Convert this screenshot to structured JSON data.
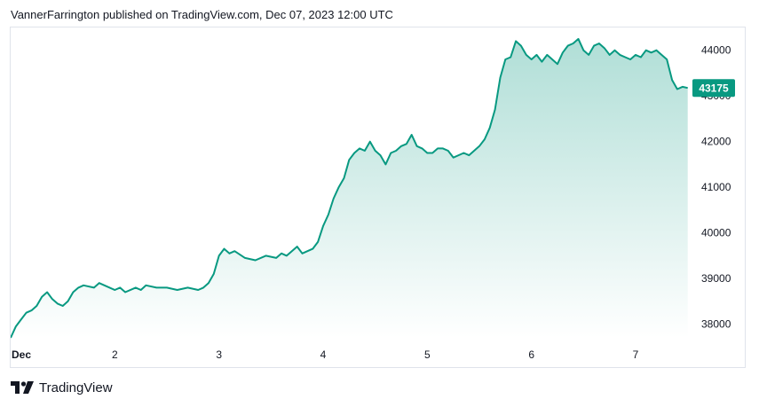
{
  "header": {
    "published_text": "VannerFarrington published on TradingView.com, Dec 07, 2023 12:00 UTC"
  },
  "footer": {
    "brand": "TradingView"
  },
  "colors": {
    "line": "#089981",
    "fill_top": "#089981",
    "price_tag": "#089981",
    "border": "#e0e3eb"
  },
  "chart_data": {
    "type": "area",
    "x_unit": "days",
    "x_ticks": [
      {
        "x": 0,
        "label": "Dec"
      },
      {
        "x": 1,
        "label": "2"
      },
      {
        "x": 2,
        "label": "3"
      },
      {
        "x": 3,
        "label": "4"
      },
      {
        "x": 4,
        "label": "5"
      },
      {
        "x": 5,
        "label": "6"
      },
      {
        "x": 6,
        "label": "7"
      }
    ],
    "y_ticks": [
      38000,
      39000,
      40000,
      41000,
      42000,
      43000,
      44000
    ],
    "ylim": [
      37700,
      44500
    ],
    "xlim": [
      0,
      6.52
    ],
    "last_price_label": "43175",
    "last_price": 43175,
    "points": [
      [
        0.0,
        37700
      ],
      [
        0.05,
        37950
      ],
      [
        0.1,
        38100
      ],
      [
        0.15,
        38250
      ],
      [
        0.2,
        38300
      ],
      [
        0.25,
        38400
      ],
      [
        0.3,
        38600
      ],
      [
        0.35,
        38700
      ],
      [
        0.4,
        38550
      ],
      [
        0.45,
        38450
      ],
      [
        0.5,
        38400
      ],
      [
        0.55,
        38500
      ],
      [
        0.6,
        38700
      ],
      [
        0.65,
        38800
      ],
      [
        0.7,
        38850
      ],
      [
        0.8,
        38800
      ],
      [
        0.85,
        38900
      ],
      [
        0.9,
        38850
      ],
      [
        0.95,
        38800
      ],
      [
        1.0,
        38750
      ],
      [
        1.05,
        38800
      ],
      [
        1.1,
        38700
      ],
      [
        1.2,
        38800
      ],
      [
        1.25,
        38750
      ],
      [
        1.3,
        38850
      ],
      [
        1.4,
        38800
      ],
      [
        1.5,
        38800
      ],
      [
        1.6,
        38750
      ],
      [
        1.7,
        38800
      ],
      [
        1.8,
        38750
      ],
      [
        1.85,
        38800
      ],
      [
        1.9,
        38900
      ],
      [
        1.95,
        39100
      ],
      [
        2.0,
        39500
      ],
      [
        2.05,
        39650
      ],
      [
        2.1,
        39550
      ],
      [
        2.15,
        39600
      ],
      [
        2.25,
        39450
      ],
      [
        2.35,
        39400
      ],
      [
        2.45,
        39500
      ],
      [
        2.55,
        39450
      ],
      [
        2.6,
        39550
      ],
      [
        2.65,
        39500
      ],
      [
        2.7,
        39600
      ],
      [
        2.75,
        39700
      ],
      [
        2.8,
        39550
      ],
      [
        2.85,
        39600
      ],
      [
        2.9,
        39650
      ],
      [
        2.95,
        39800
      ],
      [
        3.0,
        40150
      ],
      [
        3.05,
        40400
      ],
      [
        3.1,
        40750
      ],
      [
        3.15,
        41000
      ],
      [
        3.2,
        41200
      ],
      [
        3.25,
        41600
      ],
      [
        3.3,
        41750
      ],
      [
        3.35,
        41850
      ],
      [
        3.4,
        41800
      ],
      [
        3.45,
        42000
      ],
      [
        3.5,
        41800
      ],
      [
        3.55,
        41700
      ],
      [
        3.6,
        41500
      ],
      [
        3.65,
        41750
      ],
      [
        3.7,
        41800
      ],
      [
        3.75,
        41900
      ],
      [
        3.8,
        41950
      ],
      [
        3.85,
        42150
      ],
      [
        3.9,
        41900
      ],
      [
        3.95,
        41850
      ],
      [
        4.0,
        41750
      ],
      [
        4.05,
        41750
      ],
      [
        4.1,
        41850
      ],
      [
        4.15,
        41850
      ],
      [
        4.2,
        41800
      ],
      [
        4.25,
        41650
      ],
      [
        4.3,
        41700
      ],
      [
        4.35,
        41750
      ],
      [
        4.4,
        41700
      ],
      [
        4.45,
        41800
      ],
      [
        4.5,
        41900
      ],
      [
        4.55,
        42050
      ],
      [
        4.6,
        42300
      ],
      [
        4.65,
        42700
      ],
      [
        4.7,
        43400
      ],
      [
        4.75,
        43800
      ],
      [
        4.8,
        43850
      ],
      [
        4.85,
        44200
      ],
      [
        4.9,
        44100
      ],
      [
        4.95,
        43900
      ],
      [
        5.0,
        43800
      ],
      [
        5.05,
        43900
      ],
      [
        5.1,
        43750
      ],
      [
        5.15,
        43900
      ],
      [
        5.2,
        43800
      ],
      [
        5.25,
        43700
      ],
      [
        5.3,
        43950
      ],
      [
        5.35,
        44100
      ],
      [
        5.4,
        44150
      ],
      [
        5.45,
        44250
      ],
      [
        5.5,
        44000
      ],
      [
        5.55,
        43900
      ],
      [
        5.6,
        44100
      ],
      [
        5.65,
        44150
      ],
      [
        5.7,
        44050
      ],
      [
        5.75,
        43900
      ],
      [
        5.8,
        44000
      ],
      [
        5.85,
        43900
      ],
      [
        5.9,
        43850
      ],
      [
        5.95,
        43800
      ],
      [
        6.0,
        43900
      ],
      [
        6.05,
        43850
      ],
      [
        6.1,
        44000
      ],
      [
        6.15,
        43950
      ],
      [
        6.2,
        44000
      ],
      [
        6.25,
        43900
      ],
      [
        6.3,
        43800
      ],
      [
        6.35,
        43350
      ],
      [
        6.4,
        43150
      ],
      [
        6.45,
        43200
      ],
      [
        6.5,
        43175
      ]
    ]
  }
}
